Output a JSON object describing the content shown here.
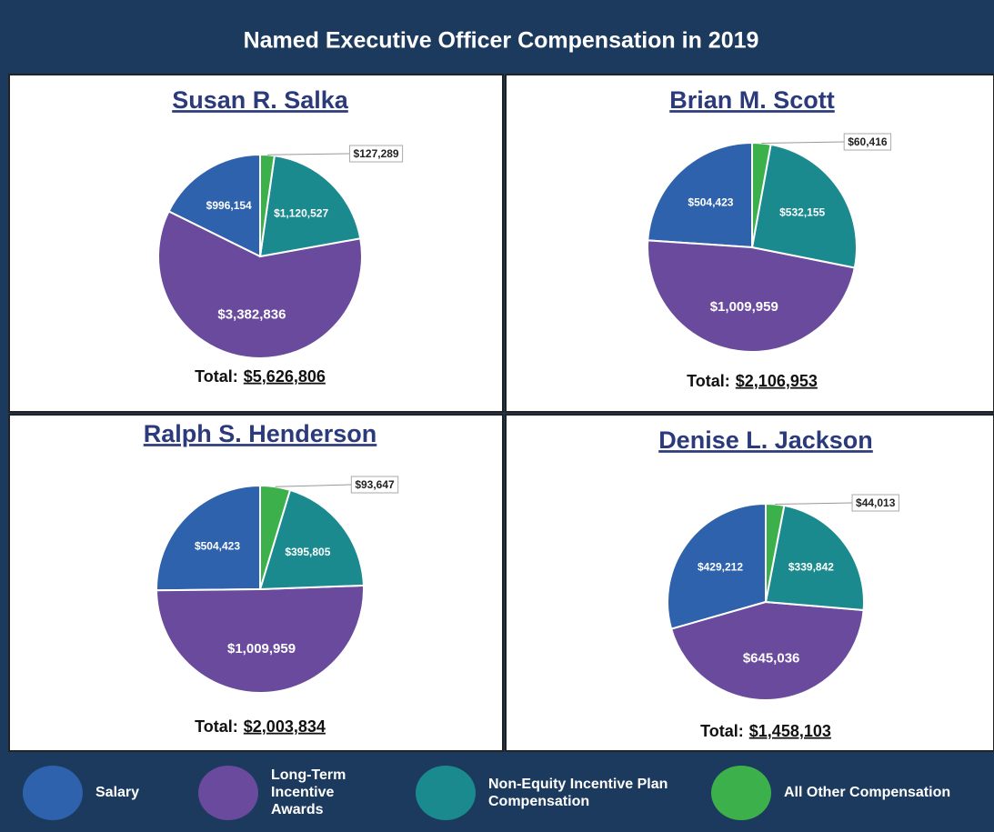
{
  "title": "Named Executive Officer Compensation in 2019",
  "chart_data": [
    {
      "type": "pie",
      "title": "Susan R. Salka",
      "categories": [
        "Salary",
        "Long-Term Incentive Awards",
        "Non-Equity Incentive Plan Compensation",
        "All Other Compensation"
      ],
      "colors": [
        "#2e62ad",
        "#6a4a9c",
        "#1a8a8e",
        "#3cb04a"
      ],
      "values": [
        996154,
        3382836,
        1120527,
        127289
      ],
      "value_labels": [
        "$996,154",
        "$3,382,836",
        "$1,120,527",
        "$127,289"
      ],
      "total_text": "Total:",
      "total": {
        "value": 5626806,
        "label": "$5,626,806"
      }
    },
    {
      "type": "pie",
      "title": "Brian M. Scott",
      "categories": [
        "Salary",
        "Long-Term Incentive Awards",
        "Non-Equity Incentive Plan Compensation",
        "All Other Compensation"
      ],
      "colors": [
        "#2e62ad",
        "#6a4a9c",
        "#1a8a8e",
        "#3cb04a"
      ],
      "values": [
        504423,
        1009959,
        532155,
        60416
      ],
      "value_labels": [
        "$504,423",
        "$1,009,959",
        "$532,155",
        "$60,416"
      ],
      "total_text": "Total:",
      "total": {
        "value": 2106953,
        "label": "$2,106,953"
      }
    },
    {
      "type": "pie",
      "title": "Ralph S. Henderson",
      "categories": [
        "Salary",
        "Long-Term Incentive Awards",
        "Non-Equity Incentive Plan Compensation",
        "All Other Compensation"
      ],
      "colors": [
        "#2e62ad",
        "#6a4a9c",
        "#1a8a8e",
        "#3cb04a"
      ],
      "values": [
        504423,
        1009959,
        395805,
        93647
      ],
      "value_labels": [
        "$504,423",
        "$1,009,959",
        "$395,805",
        "$93,647"
      ],
      "total_text": "Total:",
      "total": {
        "value": 2003834,
        "label": "$2,003,834"
      }
    },
    {
      "type": "pie",
      "title": "Denise L. Jackson",
      "categories": [
        "Salary",
        "Long-Term Incentive Awards",
        "Non-Equity Incentive Plan Compensation",
        "All Other Compensation"
      ],
      "colors": [
        "#2e62ad",
        "#6a4a9c",
        "#1a8a8e",
        "#3cb04a"
      ],
      "values": [
        429212,
        645036,
        339842,
        44013
      ],
      "value_labels": [
        "$429,212",
        "$645,036",
        "$339,842",
        "$44,013"
      ],
      "total_text": "Total:",
      "total": {
        "value": 1458103,
        "label": "$1,458,103"
      }
    }
  ]
}
